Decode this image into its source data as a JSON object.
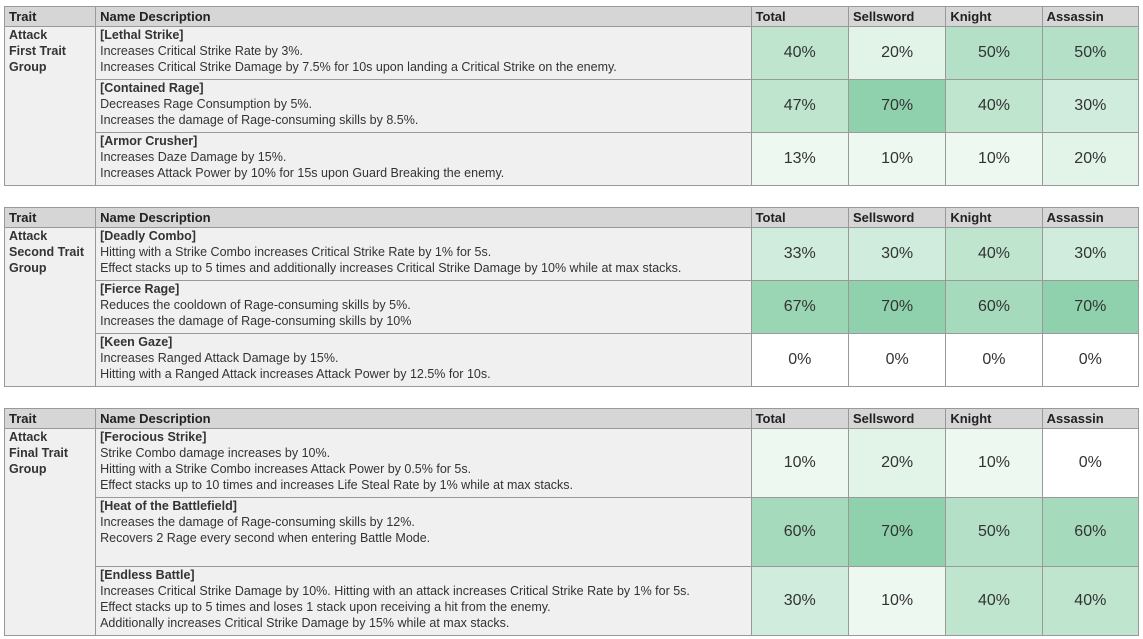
{
  "headers": [
    "Trait",
    "Name Description",
    "Total",
    "Sellsword",
    "Knight",
    "Assassin"
  ],
  "colors": {
    "0": "#ffffff",
    "10": "#edf8f1",
    "13": "#edf8f1",
    "20": "#e2f3e8",
    "30": "#d0ecdc",
    "33": "#d0ecdc",
    "40": "#bfe5cf",
    "47": "#bfe5cf",
    "50": "#b3e0c7",
    "60": "#a5dabc",
    "67": "#9ad6b4",
    "70": "#8ed1ac"
  },
  "groups": [
    {
      "trait": [
        "Attack",
        "First Trait",
        "Group"
      ],
      "rows": [
        {
          "name": "[Lethal Strike]",
          "lines": [
            "Increases Critical Strike Rate by 3%.",
            "Increases Critical Strike Damage by 7.5% for 10s upon landing a Critical Strike on the enemy."
          ],
          "values": [
            "40%",
            "20%",
            "50%",
            "50%"
          ]
        },
        {
          "name": "[Contained Rage]",
          "lines": [
            "Decreases Rage Consumption by 5%.",
            "Increases the damage of Rage-consuming skills by 8.5%."
          ],
          "values": [
            "47%",
            "70%",
            "40%",
            "30%"
          ]
        },
        {
          "name": "[Armor Crusher]",
          "lines": [
            "Increases Daze Damage by 15%.",
            "Increases Attack Power by 10% for 15s upon Guard Breaking the enemy."
          ],
          "values": [
            "13%",
            "10%",
            "10%",
            "20%"
          ]
        }
      ]
    },
    {
      "trait": [
        "Attack",
        "Second Trait",
        "Group"
      ],
      "rows": [
        {
          "name": "[Deadly Combo]",
          "lines": [
            "Hitting with a Strike Combo increases Critical Strike Rate by 1% for 5s.",
            "Effect stacks up to 5 times and additionally increases Critical Strike Damage by 10% while at max stacks."
          ],
          "values": [
            "33%",
            "30%",
            "40%",
            "30%"
          ]
        },
        {
          "name": "[Fierce Rage]",
          "lines": [
            "Reduces the cooldown of Rage-consuming skills by 5%.",
            "Increases the damage of Rage-consuming skills by 10%"
          ],
          "values": [
            "67%",
            "70%",
            "60%",
            "70%"
          ]
        },
        {
          "name": "[Keen Gaze]",
          "lines": [
            "Increases Ranged Attack Damage by 15%.",
            "Hitting with a Ranged Attack increases Attack Power by 12.5% for 10s."
          ],
          "values": [
            "0%",
            "0%",
            "0%",
            "0%"
          ]
        }
      ]
    },
    {
      "trait": [
        "Attack",
        "Final Trait",
        "Group"
      ],
      "rows": [
        {
          "name": "[Ferocious Strike]",
          "lines": [
            "Strike Combo damage increases by 10%.",
            "Hitting with a Strike Combo increases Attack Power by 0.5% for 5s.",
            "Effect stacks up to 10 times and increases Life Steal Rate by 1% while at max stacks."
          ],
          "values": [
            "10%",
            "20%",
            "10%",
            "0%"
          ]
        },
        {
          "name": "[Heat of the Battlefield]",
          "lines": [
            "Increases the damage of Rage-consuming skills by 12%.",
            "Recovers 2 Rage every second when entering Battle Mode."
          ],
          "values": [
            "60%",
            "70%",
            "50%",
            "60%"
          ]
        },
        {
          "name": "[Endless Battle]",
          "lines": [
            "Increases Critical Strike Damage by 10%. Hitting with an attack increases Critical Strike Rate by 1% for 5s.",
            "Effect stacks up to 5 times and loses 1 stack upon receiving a hit from the enemy.",
            "Additionally increases Critical Strike Damage by 15% while at max stacks."
          ],
          "values": [
            "30%",
            "10%",
            "40%",
            "40%"
          ]
        }
      ]
    }
  ]
}
